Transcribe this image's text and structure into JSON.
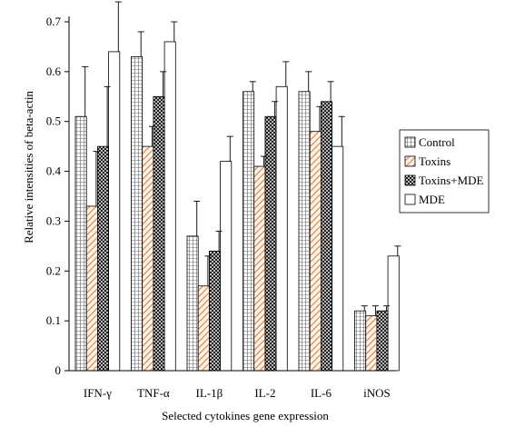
{
  "chart_data": {
    "type": "bar",
    "title": "",
    "xlabel": "Selected cytokines gene expression",
    "ylabel": "Relative intensities of beta-actin",
    "ylim": [
      0,
      0.7
    ],
    "yticks": [
      "0",
      "0.1",
      "0.2",
      "0.3",
      "0.4",
      "0.5",
      "0.6",
      "0.7"
    ],
    "grid": false,
    "legend_position": "right",
    "categories": [
      "IFN-γ",
      "TNF-α",
      "IL-1β",
      "IL-2",
      "IL-6",
      "iNOS"
    ],
    "series": [
      {
        "name": "Control",
        "pattern": "grid",
        "values": [
          0.51,
          0.63,
          0.27,
          0.56,
          0.56,
          0.12
        ],
        "errors": [
          0.1,
          0.05,
          0.07,
          0.02,
          0.04,
          0.01
        ]
      },
      {
        "name": "Toxins",
        "pattern": "diagonal",
        "values": [
          0.33,
          0.45,
          0.17,
          0.41,
          0.48,
          0.11
        ],
        "errors": [
          0.11,
          0.04,
          0.06,
          0.02,
          0.05,
          0.02
        ]
      },
      {
        "name": "Toxins+MDE",
        "pattern": "crosshatch",
        "values": [
          0.45,
          0.55,
          0.24,
          0.51,
          0.54,
          0.12
        ],
        "errors": [
          0.12,
          0.05,
          0.04,
          0.03,
          0.04,
          0.01
        ]
      },
      {
        "name": "MDE",
        "pattern": "plain",
        "values": [
          0.64,
          0.66,
          0.42,
          0.57,
          0.45,
          0.23
        ],
        "errors": [
          0.1,
          0.04,
          0.05,
          0.05,
          0.06,
          0.02
        ]
      }
    ],
    "colors": {
      "bar_fill": "#ffffff",
      "stroke": "#000000",
      "toxins_hatch": "#e07a3a"
    }
  }
}
